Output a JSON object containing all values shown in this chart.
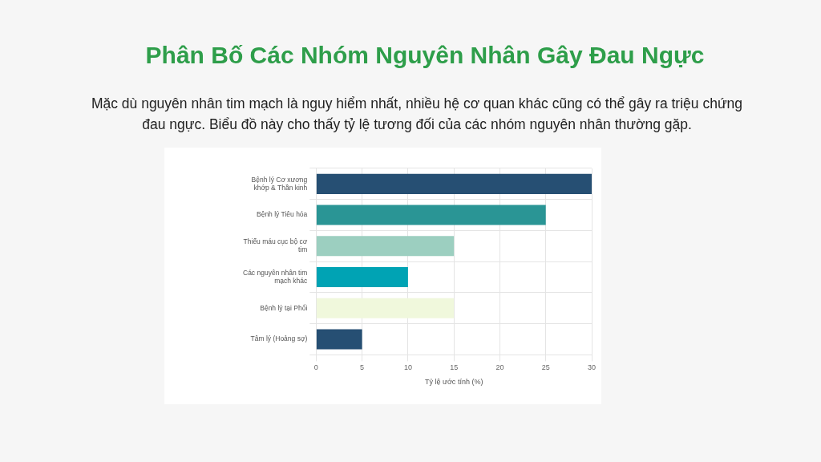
{
  "chart_data": {
    "type": "bar",
    "orientation": "horizontal",
    "title": "Phân Bố Các Nhóm Nguyên Nhân Gây Đau Ngực",
    "subtitle": "Mặc dù nguyên nhân tim mạch là nguy hiểm nhất, nhiều hệ cơ quan khác cũng có thể gây ra triệu chứng đau ngực. Biểu đồ này cho thấy tỷ lệ tương đối của các nhóm nguyên nhân thường gặp.",
    "categories": [
      "Bệnh lý Cơ xương khớp & Thần kinh",
      "Bệnh lý Tiêu hóa",
      "Thiếu máu cục bộ cơ tim",
      "Các nguyên nhân tim mạch khác",
      "Bệnh lý tại Phổi",
      "Tâm lý (Hoảng sợ)"
    ],
    "values": [
      30,
      25,
      15,
      10,
      15,
      5
    ],
    "colors": [
      "#264f73",
      "#2a9595",
      "#9ccfc0",
      "#00a3b4",
      "#f0f8dc",
      "#264f73"
    ],
    "xlabel": "Tỷ lệ ước tính (%)",
    "xlim": [
      0,
      30
    ],
    "xticks": [
      0,
      5,
      10,
      15,
      20,
      25,
      30
    ],
    "grid": true
  }
}
